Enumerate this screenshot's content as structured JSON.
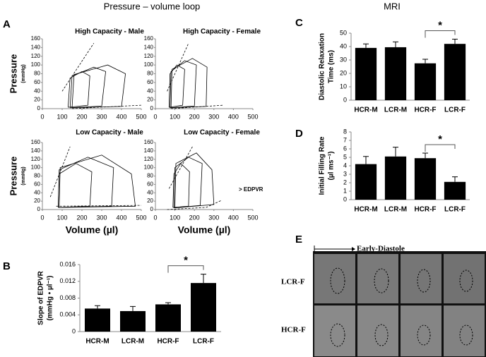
{
  "header": {
    "left": "Pressure – volume loop",
    "right": "MRI"
  },
  "panel_letters": [
    "A",
    "B",
    "C",
    "D",
    "E"
  ],
  "chart_data": [
    {
      "type": "pv_loop",
      "title": "High Capacity - Male",
      "y_label": [
        "Pressure",
        "(mmHg)"
      ],
      "xlim": [
        0,
        500
      ],
      "xticks": [
        0,
        100,
        200,
        300,
        400,
        500
      ],
      "ylim": [
        0,
        160
      ],
      "yticks": [
        0,
        20,
        40,
        60,
        80,
        100,
        120,
        140,
        160
      ],
      "series": [
        {
          "color": "#000000",
          "x": [
            130,
            230,
            240,
            200,
            140,
            130
          ],
          "values": [
            3,
            8,
            75,
            85,
            70,
            3
          ]
        },
        {
          "color": "#000000",
          "x": [
            140,
            300,
            320,
            260,
            150,
            140
          ],
          "values": [
            2,
            6,
            85,
            95,
            75,
            2
          ]
        },
        {
          "color": "#000000",
          "x": [
            150,
            400,
            420,
            330,
            160,
            150
          ],
          "values": [
            2,
            5,
            80,
            100,
            78,
            2
          ]
        },
        {
          "color": "#000000",
          "dashed": true,
          "x": [
            100,
            260
          ],
          "values": [
            40,
            150
          ]
        },
        {
          "color": "#000000",
          "dashed": true,
          "x": [
            150,
            500
          ],
          "values": [
            0,
            8
          ]
        }
      ]
    },
    {
      "type": "pv_loop",
      "title": "High Capacity - Female",
      "xlim": [
        0,
        500
      ],
      "xticks": [
        0,
        100,
        200,
        300,
        400,
        500
      ],
      "ylim": [
        0,
        160
      ],
      "yticks": [
        0,
        20,
        40,
        60,
        80,
        100,
        120,
        140,
        160
      ],
      "series": [
        {
          "color": "#000000",
          "x": [
            70,
            140,
            150,
            110,
            75,
            70
          ],
          "values": [
            3,
            8,
            90,
            100,
            80,
            3
          ]
        },
        {
          "color": "#000000",
          "x": [
            75,
            200,
            210,
            150,
            80,
            75
          ],
          "values": [
            2,
            6,
            100,
            110,
            85,
            2
          ]
        },
        {
          "color": "#000000",
          "x": [
            80,
            260,
            265,
            190,
            85,
            80
          ],
          "values": [
            2,
            5,
            95,
            115,
            90,
            2
          ]
        },
        {
          "color": "#000000",
          "dashed": true,
          "x": [
            60,
            170
          ],
          "values": [
            40,
            150
          ]
        },
        {
          "color": "#000000",
          "dashed": true,
          "x": [
            80,
            350
          ],
          "values": [
            0,
            8
          ]
        }
      ]
    },
    {
      "type": "pv_loop",
      "title": "Low Capacity - Male",
      "y_label": [
        "Pressure",
        "(mmHg)"
      ],
      "x_label": "Volume (µl)",
      "xlim": [
        0,
        500
      ],
      "xticks": [
        0,
        100,
        200,
        300,
        400,
        500
      ],
      "ylim": [
        0,
        160
      ],
      "yticks": [
        0,
        20,
        40,
        60,
        80,
        100,
        120,
        140,
        160
      ],
      "series": [
        {
          "color": "#000000",
          "x": [
            80,
            240,
            250,
            170,
            85,
            80
          ],
          "values": [
            5,
            8,
            90,
            110,
            85,
            5
          ]
        },
        {
          "color": "#000000",
          "x": [
            80,
            350,
            360,
            230,
            85,
            80
          ],
          "values": [
            5,
            8,
            100,
            125,
            95,
            5
          ]
        },
        {
          "color": "#000000",
          "x": [
            85,
            470,
            450,
            300,
            90,
            85
          ],
          "values": [
            5,
            8,
            85,
            130,
            100,
            5
          ]
        },
        {
          "color": "#000000",
          "dashed": true,
          "x": [
            40,
            140
          ],
          "values": [
            30,
            150
          ]
        },
        {
          "color": "#000000",
          "dashed": true,
          "x": [
            70,
            500
          ],
          "values": [
            8,
            10
          ]
        }
      ]
    },
    {
      "type": "pv_loop",
      "title": "Low Capacity - Female",
      "x_label": "Volume (µl)",
      "annotation": "> EDPVR",
      "xlim": [
        0,
        500
      ],
      "xticks": [
        0,
        100,
        200,
        300,
        400,
        500
      ],
      "ylim": [
        0,
        160
      ],
      "yticks": [
        0,
        20,
        40,
        60,
        80,
        100,
        120,
        140,
        160
      ],
      "series": [
        {
          "color": "#000000",
          "x": [
            90,
            170,
            175,
            130,
            95,
            90
          ],
          "values": [
            5,
            8,
            90,
            110,
            85,
            5
          ]
        },
        {
          "color": "#000000",
          "x": [
            95,
            230,
            240,
            170,
            100,
            95
          ],
          "values": [
            4,
            10,
            110,
            125,
            100,
            4
          ]
        },
        {
          "color": "#000000",
          "x": [
            100,
            300,
            290,
            210,
            105,
            100
          ],
          "values": [
            4,
            12,
            95,
            135,
            110,
            4
          ]
        },
        {
          "color": "#000000",
          "dashed": true,
          "x": [
            70,
            190
          ],
          "values": [
            50,
            150
          ]
        },
        {
          "color": "#000000",
          "dashed": true,
          "x": [
            60,
            260,
            340
          ],
          "values": [
            0,
            5,
            22
          ]
        }
      ]
    },
    {
      "type": "bar",
      "y_label": [
        "Slope of EDPVR",
        "(mmHg • µl⁻¹)"
      ],
      "categories": [
        "HCR-M",
        "LCR-M",
        "HCR-F",
        "LCR-F"
      ],
      "values": [
        0.0055,
        0.0049,
        0.0065,
        0.0116
      ],
      "errors": [
        0.0007,
        0.0011,
        0.0004,
        0.0021
      ],
      "color": "#000000",
      "ylim": [
        0,
        0.016
      ],
      "yticks": [
        0,
        0.004,
        0.008,
        0.012,
        0.016
      ],
      "significance": {
        "from": 2,
        "to": 3,
        "label": "*"
      }
    },
    {
      "type": "bar",
      "y_label": [
        "Diastolic Relaxation",
        "Time (ms)"
      ],
      "categories": [
        "HCR-M",
        "LCR-M",
        "HCR-F",
        "LCR-F"
      ],
      "values": [
        39,
        39.5,
        27.5,
        42
      ],
      "errors": [
        3,
        4,
        3,
        3.5
      ],
      "color": "#000000",
      "ylim": [
        0,
        50
      ],
      "yticks": [
        0,
        10,
        20,
        30,
        40,
        50
      ],
      "significance": {
        "from": 2,
        "to": 3,
        "label": "*"
      }
    },
    {
      "type": "bar",
      "y_label": [
        "Initial Filling Rate",
        "(µl  ms⁻¹)"
      ],
      "categories": [
        "HCR-M",
        "LCR-M",
        "HCR-F",
        "LCR-F"
      ],
      "values": [
        4.2,
        5.1,
        4.9,
        2.1
      ],
      "errors": [
        0.9,
        1.1,
        0.6,
        0.6
      ],
      "color": "#000000",
      "ylim": [
        0,
        8
      ],
      "yticks": [
        0,
        1,
        2,
        3,
        4,
        5,
        6,
        7,
        8
      ],
      "significance": {
        "from": 2,
        "to": 3,
        "label": "*"
      }
    }
  ],
  "mri": {
    "arrow_label": "Early-Diastole",
    "rows": [
      "LCR-F",
      "HCR-F"
    ]
  }
}
